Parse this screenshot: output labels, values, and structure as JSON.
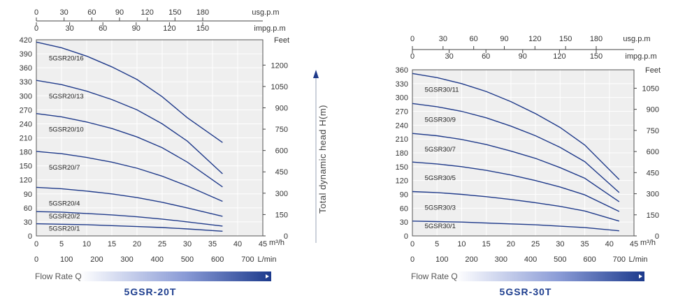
{
  "center_axis_label": "Total dynamic head H(m)",
  "flow_rate_label": "Flow Rate Q",
  "colors": {
    "curve": "#1f3a8a",
    "plot_bg": "#efefef",
    "bar_dark": "#1c3a8c",
    "grid": "#ffffff"
  },
  "chart_data": [
    {
      "type": "line",
      "title": "5GSR-20T",
      "y_unit": "",
      "y_ticks": [
        0,
        30,
        60,
        90,
        120,
        150,
        180,
        210,
        240,
        270,
        300,
        330,
        360,
        390,
        420
      ],
      "ylim": [
        0,
        420
      ],
      "x_unit": "m³/h",
      "x_ticks": [
        0,
        5,
        10,
        15,
        20,
        25,
        30,
        35,
        40,
        45
      ],
      "xlim": [
        0,
        45
      ],
      "lmin_unit": "L/min",
      "lmin_ticks": [
        0,
        100,
        200,
        300,
        400,
        500,
        600,
        700
      ],
      "usg_unit": "usg.p.m",
      "usg_ticks": [
        0,
        30,
        60,
        90,
        120,
        150,
        180
      ],
      "impg_unit": "impg.p.m",
      "impg_ticks": [
        0,
        30,
        60,
        90,
        120,
        150
      ],
      "feet_unit": "Feet",
      "feet_ticks": [
        0,
        150,
        300,
        450,
        600,
        750,
        900,
        1050,
        1200
      ],
      "series": [
        {
          "name": "5GSR20/16",
          "x": [
            0,
            5,
            10,
            15,
            20,
            25,
            30,
            37
          ],
          "y": [
            415,
            403,
            385,
            362,
            335,
            298,
            253,
            200
          ]
        },
        {
          "name": "5GSR20/13",
          "x": [
            0,
            5,
            10,
            15,
            20,
            25,
            30,
            37
          ],
          "y": [
            333,
            324,
            310,
            292,
            270,
            240,
            203,
            133
          ]
        },
        {
          "name": "5GSR20/10",
          "x": [
            0,
            5,
            10,
            15,
            20,
            25,
            30,
            37
          ],
          "y": [
            262,
            255,
            244,
            230,
            212,
            189,
            158,
            105
          ]
        },
        {
          "name": "5GSR20/7",
          "x": [
            0,
            5,
            10,
            15,
            20,
            25,
            30,
            37
          ],
          "y": [
            181,
            176,
            168,
            158,
            145,
            128,
            107,
            74
          ]
        },
        {
          "name": "5GSR20/4",
          "x": [
            0,
            5,
            10,
            15,
            20,
            25,
            30,
            37
          ],
          "y": [
            104,
            101,
            96,
            90,
            82,
            72,
            60,
            42
          ]
        },
        {
          "name": "5GSR20/2",
          "x": [
            0,
            5,
            10,
            15,
            20,
            25,
            30,
            37
          ],
          "y": [
            52,
            51,
            48,
            45,
            41,
            36,
            30,
            21
          ]
        },
        {
          "name": "5GSR20/1",
          "x": [
            0,
            5,
            10,
            15,
            20,
            25,
            30,
            37
          ],
          "y": [
            26,
            25,
            24,
            22,
            20,
            18,
            15,
            10
          ]
        }
      ]
    },
    {
      "type": "line",
      "title": "5GSR-30T",
      "y_unit": "",
      "y_ticks": [
        0,
        30,
        60,
        90,
        120,
        150,
        180,
        210,
        240,
        270,
        300,
        330,
        360
      ],
      "ylim": [
        0,
        360
      ],
      "x_unit": "m³/h",
      "x_ticks": [
        0,
        5,
        10,
        15,
        20,
        25,
        30,
        35,
        40,
        45
      ],
      "xlim": [
        0,
        45
      ],
      "lmin_unit": "L/min",
      "lmin_ticks": [
        0,
        100,
        200,
        300,
        400,
        500,
        600,
        700
      ],
      "usg_unit": "usg.p.m",
      "usg_ticks": [
        0,
        30,
        60,
        90,
        120,
        150,
        180
      ],
      "impg_unit": "impg.p.m",
      "impg_ticks": [
        0,
        30,
        60,
        90,
        120,
        150
      ],
      "feet_unit": "Feet",
      "feet_ticks": [
        0,
        150,
        300,
        450,
        600,
        750,
        900,
        1050
      ],
      "series": [
        {
          "name": "5GSR30/11",
          "x": [
            0,
            5,
            10,
            15,
            20,
            25,
            30,
            35,
            42
          ],
          "y": [
            352,
            343,
            330,
            313,
            291,
            265,
            235,
            197,
            122
          ]
        },
        {
          "name": "5GSR30/9",
          "x": [
            0,
            5,
            10,
            15,
            20,
            25,
            30,
            35,
            42
          ],
          "y": [
            287,
            280,
            270,
            256,
            238,
            217,
            192,
            161,
            94
          ]
        },
        {
          "name": "5GSR30/7",
          "x": [
            0,
            5,
            10,
            15,
            20,
            25,
            30,
            35,
            42
          ],
          "y": [
            222,
            217,
            209,
            198,
            184,
            168,
            148,
            125,
            74
          ]
        },
        {
          "name": "5GSR30/5",
          "x": [
            0,
            5,
            10,
            15,
            20,
            25,
            30,
            35,
            42
          ],
          "y": [
            160,
            156,
            150,
            142,
            132,
            120,
            106,
            89,
            53
          ]
        },
        {
          "name": "5GSR30/3",
          "x": [
            0,
            5,
            10,
            15,
            20,
            25,
            30,
            35,
            42
          ],
          "y": [
            96,
            94,
            90,
            85,
            79,
            72,
            64,
            54,
            32
          ]
        },
        {
          "name": "5GSR30/1",
          "x": [
            0,
            5,
            10,
            15,
            20,
            25,
            30,
            35,
            42
          ],
          "y": [
            32,
            31,
            30,
            28,
            26,
            24,
            21,
            18,
            11
          ]
        }
      ]
    }
  ]
}
